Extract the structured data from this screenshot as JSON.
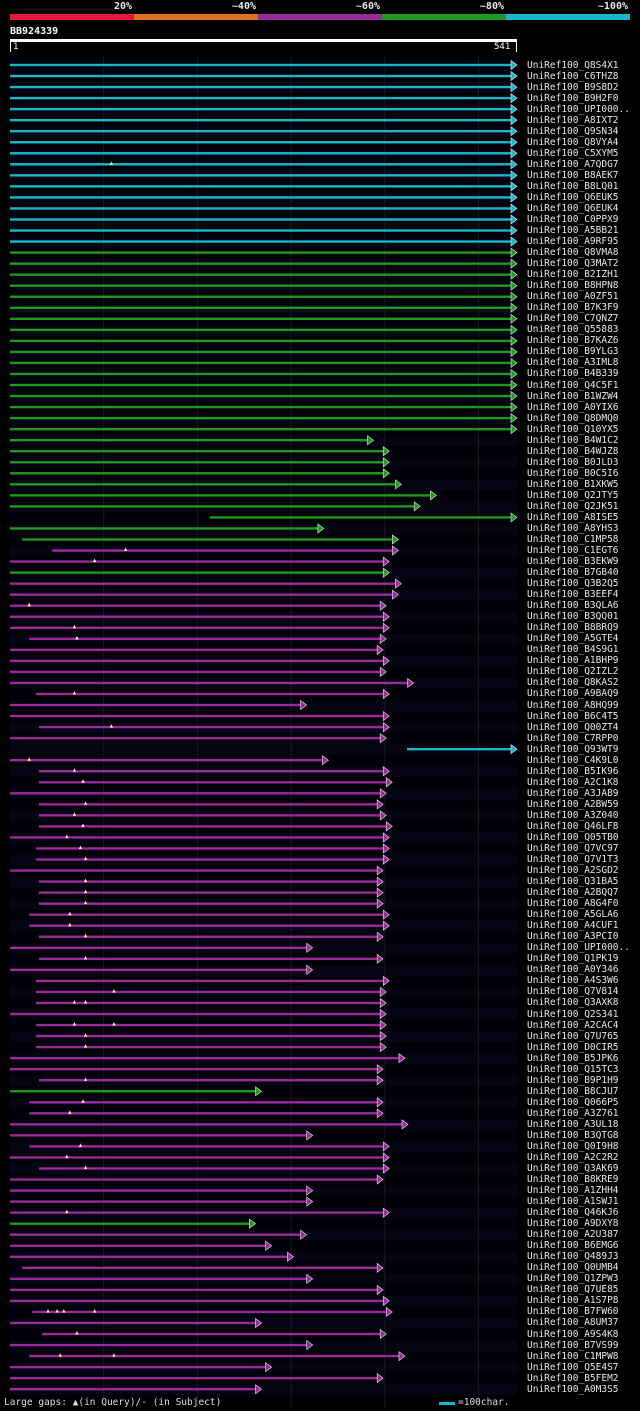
{
  "legend": {
    "labels": [
      "20%",
      "~40%",
      "~60%",
      "~80%",
      "~100%"
    ],
    "colors": [
      "#e8163a",
      "#e3701c",
      "#9a2a98",
      "#1f9a1f",
      "#18b8c8"
    ]
  },
  "query": {
    "id": "BB924339",
    "start": "1",
    "end": "541"
  },
  "hits": [
    {
      "name": "UniRef100_Q8S4X1",
      "s": 0,
      "e": 100,
      "c": "cyan"
    },
    {
      "name": "UniRef100_C6THZ8",
      "s": 0,
      "e": 100,
      "c": "cyan"
    },
    {
      "name": "UniRef100_B9S8D2",
      "s": 0,
      "e": 100,
      "c": "cyan"
    },
    {
      "name": "UniRef100_B9H2F0",
      "s": 0,
      "e": 100,
      "c": "cyan"
    },
    {
      "name": "UniRef100_UPI000..",
      "s": 0,
      "e": 100,
      "c": "cyan"
    },
    {
      "name": "UniRef100_A8IXT2",
      "s": 0,
      "e": 100,
      "c": "cyan"
    },
    {
      "name": "UniRef100_Q9SN34",
      "s": 0,
      "e": 100,
      "c": "cyan"
    },
    {
      "name": "UniRef100_Q8VYA4",
      "s": 0,
      "e": 100,
      "c": "cyan"
    },
    {
      "name": "UniRef100_C5XYM5",
      "s": 0,
      "e": 100,
      "c": "cyan"
    },
    {
      "name": "UniRef100_A7QDG7",
      "s": 0,
      "e": 100,
      "c": "cyan",
      "q": [
        20
      ]
    },
    {
      "name": "UniRef100_B8AEK7",
      "s": 0,
      "e": 100,
      "c": "cyan"
    },
    {
      "name": "UniRef100_B8LQ01",
      "s": 0,
      "e": 100,
      "c": "cyan"
    },
    {
      "name": "UniRef100_Q6EUK5",
      "s": 0,
      "e": 100,
      "c": "cyan"
    },
    {
      "name": "UniRef100_Q6EUK4",
      "s": 0,
      "e": 100,
      "c": "cyan"
    },
    {
      "name": "UniRef100_C0PPX9",
      "s": 0,
      "e": 100,
      "c": "cyan"
    },
    {
      "name": "UniRef100_A5BB21",
      "s": 0,
      "e": 100,
      "c": "cyan"
    },
    {
      "name": "UniRef100_A9RF95",
      "s": 0,
      "e": 100,
      "c": "cyan"
    },
    {
      "name": "UniRef100_Q8VMA8",
      "s": 0,
      "e": 100,
      "c": "green"
    },
    {
      "name": "UniRef100_Q3MAT2",
      "s": 0,
      "e": 100,
      "c": "green"
    },
    {
      "name": "UniRef100_B2IZH1",
      "s": 0,
      "e": 100,
      "c": "green"
    },
    {
      "name": "UniRef100_B8HPN8",
      "s": 0,
      "e": 100,
      "c": "green"
    },
    {
      "name": "UniRef100_A0ZF51",
      "s": 0,
      "e": 100,
      "c": "green"
    },
    {
      "name": "UniRef100_B7K3F9",
      "s": 0,
      "e": 100,
      "c": "green"
    },
    {
      "name": "UniRef100_C7QNZ7",
      "s": 0,
      "e": 100,
      "c": "green"
    },
    {
      "name": "UniRef100_Q55883",
      "s": 0,
      "e": 100,
      "c": "green"
    },
    {
      "name": "UniRef100_B7KAZ6",
      "s": 0,
      "e": 100,
      "c": "green"
    },
    {
      "name": "UniRef100_B9YLG3",
      "s": 0,
      "e": 100,
      "c": "green"
    },
    {
      "name": "UniRef100_A3IML8",
      "s": 0,
      "e": 100,
      "c": "green"
    },
    {
      "name": "UniRef100_B4B339",
      "s": 0,
      "e": 100,
      "c": "green"
    },
    {
      "name": "UniRef100_Q4C5F1",
      "s": 0,
      "e": 100,
      "c": "green"
    },
    {
      "name": "UniRef100_B1WZW4",
      "s": 0,
      "e": 100,
      "c": "green"
    },
    {
      "name": "UniRef100_A0YIX6",
      "s": 0,
      "e": 100,
      "c": "green"
    },
    {
      "name": "UniRef100_Q8DMQ0",
      "s": 0,
      "e": 100,
      "c": "green"
    },
    {
      "name": "UniRef100_Q10YX5",
      "s": 0,
      "e": 100,
      "c": "green"
    },
    {
      "name": "UniRef100_B4W1C2",
      "s": 0,
      "e": 71.7,
      "c": "green"
    },
    {
      "name": "UniRef100_B4WJZ8",
      "s": 0,
      "e": 74.8,
      "c": "green"
    },
    {
      "name": "UniRef100_B0JLD3",
      "s": 0,
      "e": 74.8,
      "c": "green"
    },
    {
      "name": "UniRef100_B0C5I6",
      "s": 0,
      "e": 74.8,
      "c": "green"
    },
    {
      "name": "UniRef100_B1XKW5",
      "s": 0,
      "e": 77.2,
      "c": "green"
    },
    {
      "name": "UniRef100_Q2JTY5",
      "s": 0,
      "e": 84.1,
      "c": "green"
    },
    {
      "name": "UniRef100_Q2JK51",
      "s": 0,
      "e": 80.9,
      "c": "green"
    },
    {
      "name": "UniRef100_A8ISE5",
      "s": 39.4,
      "e": 100,
      "c": "green"
    },
    {
      "name": "UniRef100_A8YHS3",
      "s": 0,
      "e": 61.9,
      "c": "green"
    },
    {
      "name": "UniRef100_C1MP58",
      "s": 2.4,
      "e": 76.6,
      "c": "green"
    },
    {
      "name": "UniRef100_C1EGT6",
      "s": 8.3,
      "e": 76.6,
      "c": "purple",
      "q": [
        22.8
      ]
    },
    {
      "name": "UniRef100_B3EKW9",
      "s": 0,
      "e": 74.8,
      "c": "purple",
      "q": [
        16.7
      ]
    },
    {
      "name": "UniRef100_B7GB40",
      "s": 0,
      "e": 74.8,
      "c": "green"
    },
    {
      "name": "UniRef100_Q3B2Q5",
      "s": 0,
      "e": 77.2,
      "c": "purple"
    },
    {
      "name": "UniRef100_B3EEF4",
      "s": 0,
      "e": 76.6,
      "c": "purple"
    },
    {
      "name": "UniRef100_B3QLA6",
      "s": 0,
      "e": 74.2,
      "c": "purple",
      "q": [
        3.8
      ]
    },
    {
      "name": "UniRef100_B3QQ01",
      "s": 0,
      "e": 74.8,
      "c": "purple"
    },
    {
      "name": "UniRef100_B8BRQ9",
      "s": 0,
      "e": 74.8,
      "c": "purple",
      "q": [
        12.7
      ]
    },
    {
      "name": "UniRef100_A5GTE4",
      "s": 3.8,
      "e": 74.2,
      "c": "purple",
      "q": [
        13.2
      ]
    },
    {
      "name": "UniRef100_B4S9G1",
      "s": 0,
      "e": 73.6,
      "c": "purple"
    },
    {
      "name": "UniRef100_A1BHP9",
      "s": 0,
      "e": 74.8,
      "c": "purple"
    },
    {
      "name": "UniRef100_Q2IZL2",
      "s": 0,
      "e": 74.2,
      "c": "purple"
    },
    {
      "name": "UniRef100_Q8KAS2",
      "s": 0,
      "e": 79.6,
      "c": "purple"
    },
    {
      "name": "UniRef100_A9BAQ9",
      "s": 5.1,
      "e": 74.8,
      "c": "purple",
      "q": [
        12.7
      ]
    },
    {
      "name": "UniRef100_A8HQ99",
      "s": 0,
      "e": 58.5,
      "c": "purple"
    },
    {
      "name": "UniRef100_B6C4T5",
      "s": 0,
      "e": 74.8,
      "c": "purple"
    },
    {
      "name": "UniRef100_Q00ZT4",
      "s": 5.7,
      "e": 74.8,
      "c": "purple",
      "q": [
        20
      ]
    },
    {
      "name": "UniRef100_C7RPP0",
      "s": 0,
      "e": 74.2,
      "c": "purple"
    },
    {
      "name": "UniRef100_Q93WT9",
      "s": 78.3,
      "e": 100,
      "c": "cyan"
    },
    {
      "name": "UniRef100_C4K9L0",
      "s": 0,
      "e": 62.8,
      "c": "purple",
      "q": [
        3.8
      ]
    },
    {
      "name": "UniRef100_B5IK96",
      "s": 5.7,
      "e": 74.8,
      "c": "purple",
      "q": [
        12.7
      ]
    },
    {
      "name": "UniRef100_A2C1K8",
      "s": 5.7,
      "e": 75.4,
      "c": "purple",
      "q": [
        14.4
      ]
    },
    {
      "name": "UniRef100_A3JAB9",
      "s": 0,
      "e": 74.2,
      "c": "purple"
    },
    {
      "name": "UniRef100_A2BW59",
      "s": 5.7,
      "e": 73.6,
      "c": "purple",
      "q": [
        14.9
      ]
    },
    {
      "name": "UniRef100_A3Z040",
      "s": 5.7,
      "e": 74.2,
      "c": "purple",
      "q": [
        12.7
      ]
    },
    {
      "name": "UniRef100_Q46LF8",
      "s": 5.7,
      "e": 75.4,
      "c": "purple",
      "q": [
        14.4
      ]
    },
    {
      "name": "UniRef100_Q05TB0",
      "s": 0,
      "e": 74.8,
      "c": "purple",
      "q": [
        11.2
      ]
    },
    {
      "name": "UniRef100_Q7VC97",
      "s": 5.1,
      "e": 74.8,
      "c": "purple",
      "q": [
        13.9
      ]
    },
    {
      "name": "UniRef100_Q7V1T3",
      "s": 5.1,
      "e": 74.8,
      "c": "purple",
      "q": [
        14.9
      ]
    },
    {
      "name": "UniRef100_A2SGD2",
      "s": 0,
      "e": 73.6,
      "c": "purple"
    },
    {
      "name": "UniRef100_Q31BA5",
      "s": 5.7,
      "e": 73.6,
      "c": "purple",
      "q": [
        14.9
      ]
    },
    {
      "name": "UniRef100_A2BQQ7",
      "s": 5.7,
      "e": 73.6,
      "c": "purple",
      "q": [
        14.9
      ]
    },
    {
      "name": "UniRef100_A8G4F0",
      "s": 5.7,
      "e": 73.6,
      "c": "purple",
      "q": [
        14.9
      ]
    },
    {
      "name": "UniRef100_A5GLA6",
      "s": 3.8,
      "e": 74.8,
      "c": "purple",
      "q": [
        11.8
      ]
    },
    {
      "name": "UniRef100_A4CUF1",
      "s": 3.8,
      "e": 74.8,
      "c": "purple",
      "q": [
        11.8
      ]
    },
    {
      "name": "UniRef100_A3PCI0",
      "s": 5.7,
      "e": 73.6,
      "c": "purple",
      "q": [
        14.9
      ]
    },
    {
      "name": "UniRef100_UPI000..",
      "s": 0,
      "e": 59.7,
      "c": "purple"
    },
    {
      "name": "UniRef100_Q1PK19",
      "s": 5.7,
      "e": 73.6,
      "c": "purple",
      "q": [
        14.9
      ]
    },
    {
      "name": "UniRef100_A0Y346",
      "s": 0,
      "e": 59.7,
      "c": "purple"
    },
    {
      "name": "UniRef100_A4S3W6",
      "s": 5.1,
      "e": 74.8,
      "c": "purple"
    },
    {
      "name": "UniRef100_Q7V814",
      "s": 5.1,
      "e": 74.2,
      "c": "purple",
      "q": [
        20.5
      ]
    },
    {
      "name": "UniRef100_Q3AXK8",
      "s": 5.1,
      "e": 74.2,
      "c": "purple",
      "q": [
        12.7,
        14.9
      ]
    },
    {
      "name": "UniRef100_Q2S341",
      "s": 0,
      "e": 74.2,
      "c": "purple"
    },
    {
      "name": "UniRef100_A2CAC4",
      "s": 5.1,
      "e": 74.2,
      "c": "purple",
      "q": [
        12.7,
        20.5
      ]
    },
    {
      "name": "UniRef100_Q7U765",
      "s": 5.1,
      "e": 74.2,
      "c": "purple",
      "q": [
        14.9
      ]
    },
    {
      "name": "UniRef100_D0CIR5",
      "s": 5.1,
      "e": 74.2,
      "c": "purple",
      "q": [
        14.9
      ]
    },
    {
      "name": "UniRef100_B5JPK6",
      "s": 0,
      "e": 77.9,
      "c": "purple"
    },
    {
      "name": "UniRef100_Q15TC3",
      "s": 0,
      "e": 73.6,
      "c": "purple"
    },
    {
      "name": "UniRef100_B9P1H9",
      "s": 5.7,
      "e": 73.6,
      "c": "purple",
      "q": [
        14.9
      ]
    },
    {
      "name": "UniRef100_B8CJU7",
      "s": 0,
      "e": 49.6,
      "c": "green"
    },
    {
      "name": "UniRef100_Q066P5",
      "s": 3.8,
      "e": 73.6,
      "c": "purple",
      "q": [
        14.4
      ]
    },
    {
      "name": "UniRef100_A3Z761",
      "s": 3.8,
      "e": 73.6,
      "c": "purple",
      "q": [
        11.8
      ]
    },
    {
      "name": "UniRef100_A3UL18",
      "s": 0,
      "e": 78.5,
      "c": "purple"
    },
    {
      "name": "UniRef100_B3QTG8",
      "s": 0,
      "e": 59.7,
      "c": "purple"
    },
    {
      "name": "UniRef100_Q0I9H8",
      "s": 3.8,
      "e": 74.8,
      "c": "purple",
      "q": [
        13.9
      ]
    },
    {
      "name": "UniRef100_A2C2R2",
      "s": 0,
      "e": 74.8,
      "c": "purple",
      "q": [
        11.2
      ]
    },
    {
      "name": "UniRef100_Q3AK69",
      "s": 5.7,
      "e": 74.8,
      "c": "purple",
      "q": [
        14.9
      ]
    },
    {
      "name": "UniRef100_B8KRE9",
      "s": 0,
      "e": 73.6,
      "c": "purple"
    },
    {
      "name": "UniRef100_A1ZHH4",
      "s": 0,
      "e": 59.7,
      "c": "purple"
    },
    {
      "name": "UniRef100_A1SWJ1",
      "s": 0,
      "e": 59.7,
      "c": "purple"
    },
    {
      "name": "UniRef100_Q46KJ6",
      "s": 0,
      "e": 74.8,
      "c": "purple",
      "q": [
        11.2
      ]
    },
    {
      "name": "UniRef100_A9DXY8",
      "s": 0,
      "e": 48.4,
      "c": "green"
    },
    {
      "name": "UniRef100_A2U387",
      "s": 0,
      "e": 58.5,
      "c": "purple"
    },
    {
      "name": "UniRef100_B6EMG6",
      "s": 0,
      "e": 51.6,
      "c": "purple"
    },
    {
      "name": "UniRef100_Q489J3",
      "s": 0,
      "e": 55.9,
      "c": "purple"
    },
    {
      "name": "UniRef100_Q0UMB4",
      "s": 2.4,
      "e": 73.6,
      "c": "purple"
    },
    {
      "name": "UniRef100_Q1ZPW3",
      "s": 0,
      "e": 59.7,
      "c": "purple"
    },
    {
      "name": "UniRef100_Q7UE85",
      "s": 0,
      "e": 73.6,
      "c": "purple"
    },
    {
      "name": "UniRef100_A1S7P8",
      "s": 0,
      "e": 74.8,
      "c": "purple"
    },
    {
      "name": "UniRef100_B7FW60",
      "s": 4.4,
      "e": 75.4,
      "c": "purple",
      "q": [
        7.5,
        9.3,
        10.6,
        16.7
      ]
    },
    {
      "name": "UniRef100_A8UM37",
      "s": 0,
      "e": 49.6,
      "c": "purple"
    },
    {
      "name": "UniRef100_A9S4K8",
      "s": 6.3,
      "e": 74.2,
      "c": "purple",
      "q": [
        13.2
      ]
    },
    {
      "name": "UniRef100_B7VS99",
      "s": 0,
      "e": 59.7,
      "c": "purple"
    },
    {
      "name": "UniRef100_C1MPW8",
      "s": 3.8,
      "e": 77.9,
      "c": "purple",
      "q": [
        9.9,
        20.5
      ]
    },
    {
      "name": "UniRef100_Q5E4S7",
      "s": 0,
      "e": 51.6,
      "c": "purple"
    },
    {
      "name": "UniRef100_B5FEM2",
      "s": 0,
      "e": 73.6,
      "c": "purple"
    },
    {
      "name": "UniRef100_A0M3S5",
      "s": 0,
      "e": 49.6,
      "c": "purple"
    }
  ],
  "footer": {
    "text": "Large gaps: ▲(in Query)/- (in Subject)",
    "scale": "=100char."
  }
}
